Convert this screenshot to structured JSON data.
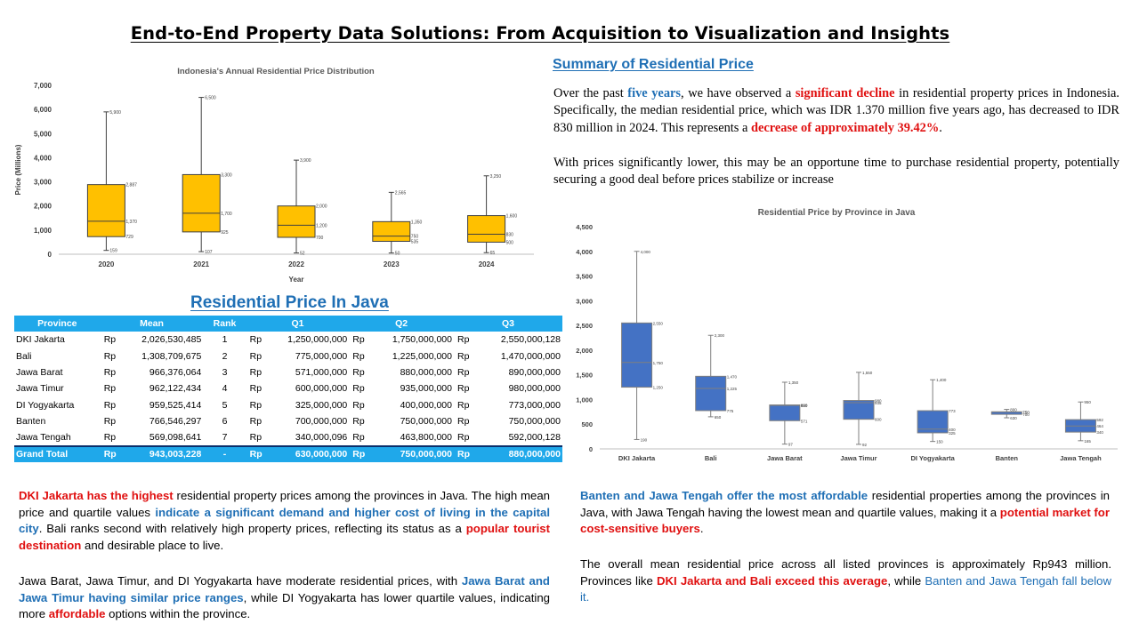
{
  "page": {
    "title": "End-to-End Property Data Solutions: From Acquisition to Visualization and Insights"
  },
  "summary": {
    "heading": "Summary of Residential Price",
    "p1": [
      {
        "t": "Over the past ",
        "s": ""
      },
      {
        "t": "five years",
        "s": "blue"
      },
      {
        "t": ", we have observed a ",
        "s": ""
      },
      {
        "t": "significant decline",
        "s": "red"
      },
      {
        "t": " in residential property prices in Indonesia. Specifically, the median residential price, which was IDR 1.370 million five years ago, has decreased to IDR 830 million in 2024. This represents a ",
        "s": ""
      },
      {
        "t": "decrease of approximately 39.42%",
        "s": "red"
      },
      {
        "t": ".",
        "s": ""
      }
    ],
    "p2": [
      {
        "t": "With prices significantly lower, this may be an opportune time to purchase residential property, potentially securing a good deal before prices stabilize or increase",
        "s": ""
      }
    ]
  },
  "table": {
    "heading": "Residential Price In Java",
    "headers": [
      "Province",
      "Mean",
      "Rank",
      "Q1",
      "Q2",
      "Q3"
    ],
    "currency": "Rp",
    "rows": [
      {
        "province": "DKI Jakarta",
        "mean": "2,026,530,485",
        "rank": "1",
        "q1": "1,250,000,000",
        "q2": "1,750,000,000",
        "q3": "2,550,000,128"
      },
      {
        "province": "Bali",
        "mean": "1,308,709,675",
        "rank": "2",
        "q1": "775,000,000",
        "q2": "1,225,000,000",
        "q3": "1,470,000,000"
      },
      {
        "province": "Jawa Barat",
        "mean": "966,376,064",
        "rank": "3",
        "q1": "571,000,000",
        "q2": "880,000,000",
        "q3": "890,000,000"
      },
      {
        "province": "Jawa Timur",
        "mean": "962,122,434",
        "rank": "4",
        "q1": "600,000,000",
        "q2": "935,000,000",
        "q3": "980,000,000"
      },
      {
        "province": "DI Yogyakarta",
        "mean": "959,525,414",
        "rank": "5",
        "q1": "325,000,000",
        "q2": "400,000,000",
        "q3": "773,000,000"
      },
      {
        "province": "Banten",
        "mean": "766,546,297",
        "rank": "6",
        "q1": "700,000,000",
        "q2": "750,000,000",
        "q3": "750,000,000"
      },
      {
        "province": "Jawa Tengah",
        "mean": "569,098,641",
        "rank": "7",
        "q1": "340,000,096",
        "q2": "463,800,000",
        "q3": "592,000,128"
      }
    ],
    "total": {
      "province": "Grand Total",
      "mean": "943,003,228",
      "rank": "-",
      "q1": "630,000,000",
      "q2": "750,000,000",
      "q3": "880,000,000"
    }
  },
  "bottom_left": {
    "p1": [
      {
        "t": "DKI Jakarta has the highest",
        "s": "red"
      },
      {
        "t": " residential property prices among the provinces in Java. The high mean price and quartile values ",
        "s": ""
      },
      {
        "t": "indicate a significant demand and higher cost of living in the capital city",
        "s": "blue"
      },
      {
        "t": ". Bali ranks second with relatively high property prices, reflecting its status as a ",
        "s": ""
      },
      {
        "t": "popular tourist destination",
        "s": "red"
      },
      {
        "t": " and desirable place to live.",
        "s": ""
      }
    ],
    "p2": [
      {
        "t": "Jawa Barat, Jawa Timur, and DI Yogyakarta have moderate residential prices, with ",
        "s": ""
      },
      {
        "t": "Jawa Barat and Jawa Timur having similar price ranges",
        "s": "blue"
      },
      {
        "t": ", while DI Yogyakarta has lower quartile values, indicating more ",
        "s": ""
      },
      {
        "t": "affordable",
        "s": "red"
      },
      {
        "t": " options within the province.",
        "s": ""
      }
    ]
  },
  "bottom_right": {
    "p1": [
      {
        "t": "Banten and Jawa Tengah offer the most affordable",
        "s": "blue"
      },
      {
        "t": " residential properties among the provinces in Java, with Jawa Tengah having the lowest mean and quartile values, making it a ",
        "s": ""
      },
      {
        "t": "potential market for cost-sensitive buyers",
        "s": "red"
      },
      {
        "t": ".",
        "s": ""
      }
    ],
    "p2": [
      {
        "t": "The overall mean residential price across all listed provinces is approximately Rp943 million. Provinces like ",
        "s": ""
      },
      {
        "t": "DKI Jakarta and Bali exceed this average",
        "s": "red"
      },
      {
        "t": ", while ",
        "s": ""
      },
      {
        "t": "Banten and Jawa Tengah fall below it.",
        "s": "blue-plain"
      }
    ]
  },
  "chart_data": [
    {
      "type": "box",
      "title": "Indonesia's Annual Residential Price Distribution",
      "xlabel": "Year",
      "ylabel": "Price (Millions)",
      "ylim": [
        0,
        7000
      ],
      "yticks": [
        "0",
        "1,000",
        "2,000",
        "3,000",
        "4,000",
        "5,000",
        "6,000",
        "7,000"
      ],
      "yticks_values": [
        0,
        1000,
        2000,
        3000,
        4000,
        5000,
        6000,
        7000
      ],
      "color": "#ffc000",
      "grid": false,
      "boxes": [
        {
          "category": "2020",
          "min": 159,
          "q1": 729,
          "median": 1370,
          "q3": 2887,
          "max": 5900,
          "labels": [
            "159",
            "729",
            "1,370",
            "2,887",
            "5,900"
          ]
        },
        {
          "category": "2021",
          "min": 107,
          "q1": 925,
          "median": 1700,
          "q3": 3300,
          "max": 6500,
          "labels": [
            "107",
            "925",
            "1,700",
            "3,300",
            "6,500"
          ]
        },
        {
          "category": "2022",
          "min": 52,
          "q1": 700,
          "median": 1200,
          "q3": 2000,
          "max": 3900,
          "labels": [
            "52",
            "700",
            "1,200",
            "2,000",
            "3,900"
          ]
        },
        {
          "category": "2023",
          "min": 50,
          "q1": 535,
          "median": 750,
          "q3": 1350,
          "max": 2565,
          "labels": [
            "50",
            "535",
            "750",
            "1,350",
            "2,565"
          ]
        },
        {
          "category": "2024",
          "min": 65,
          "q1": 500,
          "median": 830,
          "q3": 1600,
          "max": 3250,
          "labels": [
            "65",
            "500",
            "830",
            "1,600",
            "3,250"
          ]
        }
      ]
    },
    {
      "type": "box",
      "title": "Residential Price by Province in Java",
      "xlabel": "",
      "ylabel": "",
      "ylim": [
        0,
        4500
      ],
      "yticks": [
        "0",
        "500",
        "1,000",
        "1,500",
        "2,000",
        "2,500",
        "3,000",
        "3,500",
        "4,000",
        "4,500"
      ],
      "yticks_values": [
        0,
        500,
        1000,
        1500,
        2000,
        2500,
        3000,
        3500,
        4000,
        4500
      ],
      "color": "#4472c4",
      "grid": false,
      "boxes": [
        {
          "category": "DKI Jakarta",
          "min": 190,
          "q1": 1250,
          "median": 1750,
          "q3": 2550,
          "max": 4000,
          "labels": [
            "190",
            "1,250",
            "1,750",
            "2,550",
            "4,000"
          ]
        },
        {
          "category": "Bali",
          "min": 650,
          "q1": 775,
          "median": 1225,
          "q3": 1470,
          "max": 2300,
          "labels": [
            "650",
            "775",
            "1,225",
            "1,470",
            "2,300"
          ]
        },
        {
          "category": "Jawa Barat",
          "min": 97,
          "q1": 571,
          "median": 880,
          "q3": 890,
          "max": 1350,
          "labels": [
            "97",
            "571",
            "880",
            "890",
            "1,350"
          ]
        },
        {
          "category": "Jawa Timur",
          "min": 92,
          "q1": 600,
          "median": 935,
          "q3": 980,
          "max": 1550,
          "labels": [
            "92",
            "600",
            "935",
            "980",
            "1,550"
          ]
        },
        {
          "category": "DI Yogyakarta",
          "min": 150,
          "q1": 325,
          "median": 400,
          "q3": 773,
          "max": 1400,
          "labels": [
            "150",
            "325",
            "400",
            "773",
            "1,400"
          ]
        },
        {
          "category": "Banten",
          "min": 630,
          "q1": 700,
          "median": 750,
          "q3": 750,
          "max": 800,
          "labels": [
            "630",
            "700",
            "750",
            "750",
            "800"
          ]
        },
        {
          "category": "Jawa Tengah",
          "min": 165,
          "q1": 340,
          "median": 464,
          "q3": 592,
          "max": 950,
          "labels": [
            "165",
            "340",
            "464",
            "592",
            "950"
          ]
        }
      ]
    }
  ]
}
